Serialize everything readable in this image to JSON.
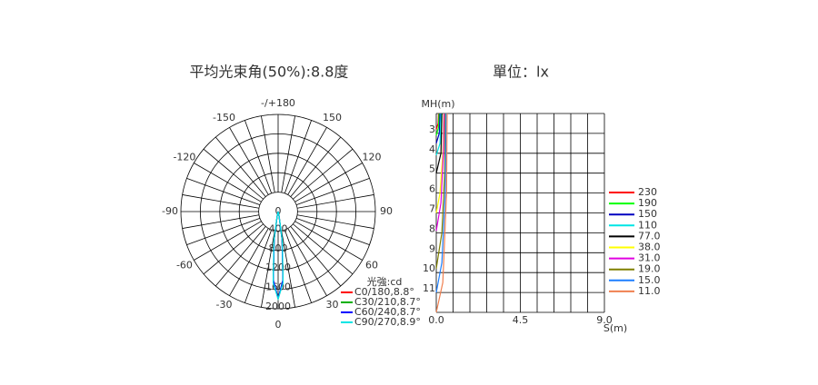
{
  "chart_data": [
    {
      "type": "polar",
      "title": "平均光束角(50%):8.8度",
      "unit_label": "光強:cd",
      "angles": [
        -12,
        -8,
        -4,
        0,
        4,
        8,
        12
      ],
      "rlim": [
        0,
        2000
      ],
      "rticks": [
        0,
        400,
        800,
        1200,
        1600,
        2000
      ],
      "angle_ticks": [
        {
          "value": 180,
          "label": "-/+180"
        },
        150,
        -150,
        120,
        -120,
        90,
        -90,
        60,
        -60,
        30,
        -30,
        0
      ],
      "series": [
        {
          "name": "C0/180,8.8°",
          "color": "#ff0000",
          "values": [
            100,
            600,
            1450,
            1800,
            1450,
            600,
            100
          ]
        },
        {
          "name": "C30/210,8.7°",
          "color": "#00b000",
          "values": [
            90,
            580,
            1420,
            1790,
            1420,
            580,
            90
          ]
        },
        {
          "name": "C60/240,8.7°",
          "color": "#0000ff",
          "values": [
            90,
            570,
            1410,
            1790,
            1410,
            570,
            90
          ]
        },
        {
          "name": "C90/270,8.9°",
          "color": "#00e5e5",
          "values": [
            110,
            620,
            1470,
            1800,
            1470,
            620,
            110
          ]
        }
      ]
    },
    {
      "type": "isolux",
      "title": "單位：lx",
      "x_label": "S(m)",
      "y_label": "MH(m)",
      "xlim": [
        0,
        9
      ],
      "ylim": [
        2,
        12
      ],
      "grid_columns": 10,
      "xticks": [
        {
          "value": 0,
          "label": "0.0"
        },
        4.5,
        {
          "value": 9,
          "label": "9.0"
        }
      ],
      "yticks": [
        3,
        4,
        5,
        6,
        7,
        8,
        9,
        10,
        11
      ],
      "series": [
        {
          "name": "230",
          "color": "#ff0000",
          "x": [
            0.12,
            0.1,
            0
          ],
          "y": [
            2,
            2.5,
            2.8
          ]
        },
        {
          "name": "190",
          "color": "#00ff00",
          "x": [
            0.15,
            0.12,
            0
          ],
          "y": [
            2,
            2.7,
            3.1
          ]
        },
        {
          "name": "150",
          "color": "#0000c0",
          "x": [
            0.2,
            0.16,
            0
          ],
          "y": [
            2,
            3,
            3.5
          ]
        },
        {
          "name": "110",
          "color": "#00e5e5",
          "x": [
            0.25,
            0.2,
            0
          ],
          "y": [
            2,
            3.5,
            4.1
          ]
        },
        {
          "name": "77.0",
          "color": "#000000",
          "x": [
            0.3,
            0.25,
            0
          ],
          "y": [
            2,
            4,
            5
          ]
        },
        {
          "name": "38.0",
          "color": "#ffff00",
          "x": [
            0.4,
            0.35,
            0.2,
            0
          ],
          "y": [
            2,
            4,
            6,
            7
          ]
        },
        {
          "name": "31.0",
          "color": "#e000e0",
          "x": [
            0.42,
            0.38,
            0.25,
            0
          ],
          "y": [
            2,
            4,
            6.5,
            7.9
          ]
        },
        {
          "name": "19.0",
          "color": "#808000",
          "x": [
            0.48,
            0.45,
            0.3,
            0
          ],
          "y": [
            2,
            5,
            8,
            9.8
          ]
        },
        {
          "name": "15.0",
          "color": "#1e7fff",
          "x": [
            0.52,
            0.48,
            0.3,
            0
          ],
          "y": [
            2,
            6,
            9.5,
            11
          ]
        },
        {
          "name": "11.0",
          "color": "#f08050",
          "x": [
            0.58,
            0.55,
            0.35,
            0
          ],
          "y": [
            2,
            6,
            10.5,
            12
          ]
        }
      ]
    }
  ]
}
